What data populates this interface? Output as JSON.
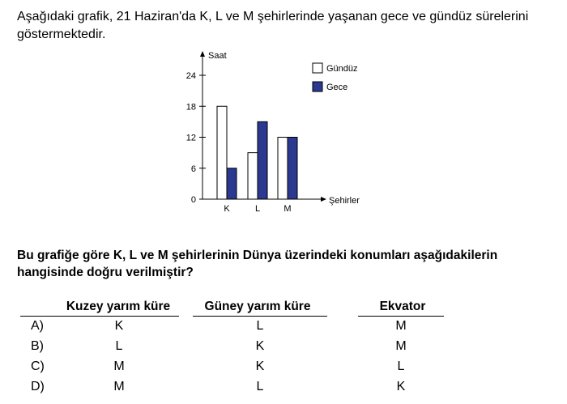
{
  "intro_text": "Aşağıdaki grafik, 21 Haziran'da K, L ve M şehirlerinde yaşanan gece ve gündüz sürelerini göstermektedir.",
  "chart_data": {
    "type": "bar",
    "categories": [
      "K",
      "L",
      "M"
    ],
    "series": [
      {
        "name": "Gündüz",
        "values": [
          18,
          9,
          12
        ],
        "color": "#ffffff"
      },
      {
        "name": "Gece",
        "values": [
          6,
          15,
          12
        ],
        "color": "#2b3990"
      }
    ],
    "ylabel": "Saat",
    "xlabel": "Şehirler",
    "yticks": [
      0,
      6,
      12,
      18,
      24
    ],
    "ylim": [
      0,
      24
    ],
    "legend_position": "top-right"
  },
  "question_text": "Bu grafiğe göre K, L ve M şehirlerinin Dünya üzerindeki konumları aşağıdakilerin hangisinde doğru verilmiştir?",
  "table": {
    "headers": [
      "Kuzey yarım küre",
      "Güney yarım küre",
      "Ekvator"
    ],
    "rows": [
      {
        "option": "A)",
        "values": [
          "K",
          "L",
          "M"
        ]
      },
      {
        "option": "B)",
        "values": [
          "L",
          "K",
          "M"
        ]
      },
      {
        "option": "C)",
        "values": [
          "M",
          "K",
          "L"
        ]
      },
      {
        "option": "D)",
        "values": [
          "M",
          "L",
          "K"
        ]
      }
    ]
  }
}
